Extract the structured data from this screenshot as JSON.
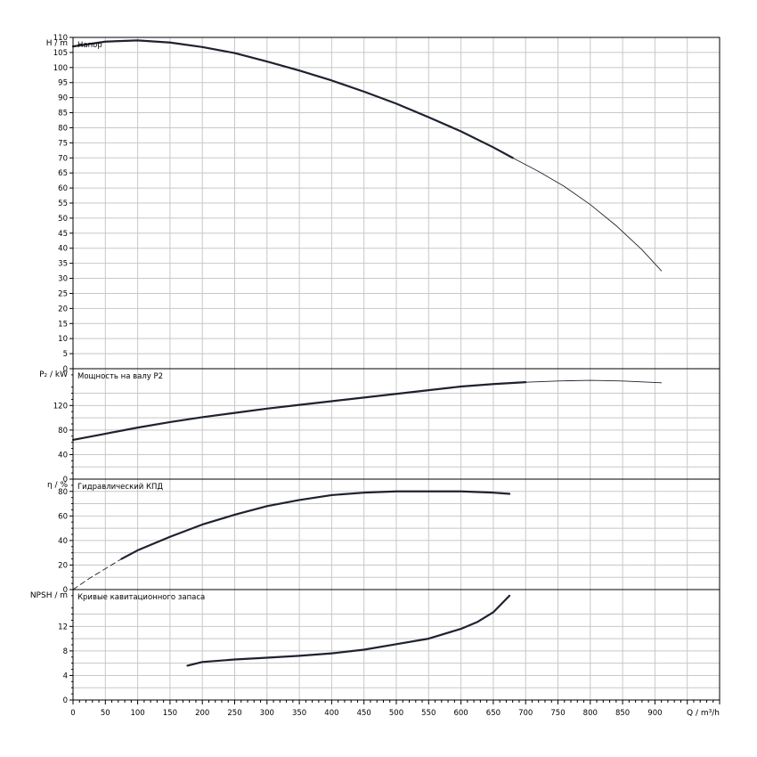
{
  "chart_data": [
    {
      "type": "line",
      "title": "Напор",
      "ylabel": "H / m",
      "xlabel": "Q / m³/h",
      "xlim": [
        0,
        1000
      ],
      "ylim": [
        0,
        110
      ],
      "yticks": [
        0,
        5,
        10,
        15,
        20,
        25,
        30,
        35,
        40,
        45,
        50,
        55,
        60,
        65,
        70,
        75,
        80,
        85,
        90,
        95,
        100,
        105,
        110
      ],
      "grid": true,
      "series": [
        {
          "values_bold": [
            [
              0,
              107
            ],
            [
              50,
              108.6
            ],
            [
              100,
              109
            ],
            [
              150,
              108.3
            ],
            [
              200,
              106.8
            ],
            [
              250,
              104.8
            ],
            [
              300,
              102
            ],
            [
              350,
              99
            ],
            [
              400,
              95.7
            ],
            [
              450,
              92
            ],
            [
              500,
              88
            ],
            [
              550,
              83.5
            ],
            [
              600,
              78.8
            ],
            [
              650,
              73.5
            ],
            [
              680,
              70
            ]
          ],
          "values_thin": [
            [
              680,
              70
            ],
            [
              720,
              65.5
            ],
            [
              760,
              60.5
            ],
            [
              800,
              54.5
            ],
            [
              840,
              47.5
            ],
            [
              880,
              39.5
            ],
            [
              910,
              32.5
            ]
          ]
        }
      ]
    },
    {
      "type": "line",
      "title": "Мощность на валу P2",
      "ylabel": "P₂ / kW",
      "xlim": [
        0,
        1000
      ],
      "ylim": [
        0,
        180
      ],
      "yticks": [
        0,
        40,
        80,
        120
      ],
      "grid": true,
      "series": [
        {
          "values_bold": [
            [
              0,
              64
            ],
            [
              50,
              74
            ],
            [
              100,
              84
            ],
            [
              150,
              93
            ],
            [
              200,
              101
            ],
            [
              250,
              108
            ],
            [
              300,
              115
            ],
            [
              350,
              121
            ],
            [
              400,
              127
            ],
            [
              450,
              133
            ],
            [
              500,
              139
            ],
            [
              550,
              145
            ],
            [
              600,
              151
            ],
            [
              650,
              155
            ],
            [
              700,
              158
            ]
          ],
          "values_thin": [
            [
              700,
              158
            ],
            [
              750,
              160
            ],
            [
              800,
              161
            ],
            [
              850,
              160
            ],
            [
              910,
              157
            ]
          ]
        }
      ]
    },
    {
      "type": "line",
      "title": "Гидравлический КПД",
      "ylabel": "η / %",
      "xlim": [
        0,
        1000
      ],
      "ylim": [
        0,
        90
      ],
      "yticks": [
        0,
        20,
        40,
        60,
        80
      ],
      "grid": true,
      "series": [
        {
          "values_dashed": [
            [
              0,
              0
            ],
            [
              25,
              9
            ],
            [
              50,
              17
            ],
            [
              75,
              25
            ]
          ],
          "values_bold": [
            [
              75,
              25
            ],
            [
              100,
              32
            ],
            [
              150,
              43
            ],
            [
              200,
              53
            ],
            [
              250,
              61
            ],
            [
              300,
              68
            ],
            [
              350,
              73
            ],
            [
              400,
              77
            ],
            [
              450,
              79
            ],
            [
              500,
              80
            ],
            [
              550,
              80
            ],
            [
              600,
              80
            ],
            [
              650,
              79
            ],
            [
              675,
              78
            ]
          ]
        }
      ]
    },
    {
      "type": "line",
      "title": "Кривые кавитационного запаса",
      "ylabel": "NPSH / m",
      "xlim": [
        0,
        1000
      ],
      "ylim": [
        0,
        18
      ],
      "yticks": [
        0,
        4,
        8,
        12
      ],
      "grid": true,
      "xticks": [
        0,
        50,
        100,
        150,
        200,
        250,
        300,
        350,
        400,
        450,
        500,
        550,
        600,
        650,
        700,
        750,
        800,
        850,
        900
      ],
      "series": [
        {
          "values_bold": [
            [
              177,
              5.6
            ],
            [
              200,
              6.2
            ],
            [
              250,
              6.6
            ],
            [
              300,
              6.9
            ],
            [
              350,
              7.2
            ],
            [
              400,
              7.6
            ],
            [
              450,
              8.2
            ],
            [
              500,
              9.1
            ],
            [
              550,
              10
            ],
            [
              600,
              11.6
            ],
            [
              625,
              12.7
            ],
            [
              650,
              14.3
            ],
            [
              675,
              17
            ]
          ]
        }
      ]
    }
  ]
}
